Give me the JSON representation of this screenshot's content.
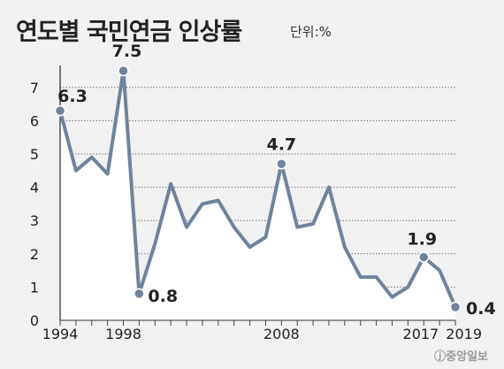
{
  "title": "연도별 국민연금 인상률",
  "unit": "단위:%",
  "credit": "ⓙ중앙일보",
  "colors": {
    "line": "#6f839c",
    "fill": "#ffffff",
    "grid": "#555555",
    "text": "#222222"
  },
  "chart_data": {
    "type": "line",
    "title": "연도별 국민연금 인상률",
    "ylabel": "단위:%",
    "ylim": [
      0,
      7.5
    ],
    "yticks": [
      0,
      1,
      2,
      3,
      4,
      5,
      6,
      7
    ],
    "xtick_labels": [
      "1994",
      "1998",
      "2008",
      "2017",
      "2019"
    ],
    "grid": true,
    "series": [
      {
        "x": [
          1994,
          1995,
          1996,
          1997,
          1998,
          1999,
          2000,
          2001,
          2002,
          2003,
          2004,
          2005,
          2006,
          2007,
          2008,
          2009,
          2010,
          2011,
          2012,
          2013,
          2014,
          2015,
          2016,
          2017,
          2018,
          2019
        ],
        "values": [
          6.3,
          4.5,
          4.9,
          4.4,
          7.5,
          0.8,
          2.3,
          4.1,
          2.8,
          3.5,
          3.6,
          2.8,
          2.2,
          2.5,
          4.7,
          2.8,
          2.9,
          4.0,
          2.2,
          1.3,
          1.3,
          0.7,
          1.0,
          1.9,
          1.5,
          0.4
        ]
      }
    ],
    "annotations": [
      {
        "x": 1994,
        "value": 6.3,
        "label": "6.3"
      },
      {
        "x": 1998,
        "value": 7.5,
        "label": "7.5"
      },
      {
        "x": 1999,
        "value": 0.8,
        "label": "0.8"
      },
      {
        "x": 2008,
        "value": 4.7,
        "label": "4.7"
      },
      {
        "x": 2017,
        "value": 1.9,
        "label": "1.9"
      },
      {
        "x": 2019,
        "value": 0.4,
        "label": "0.4"
      }
    ]
  }
}
